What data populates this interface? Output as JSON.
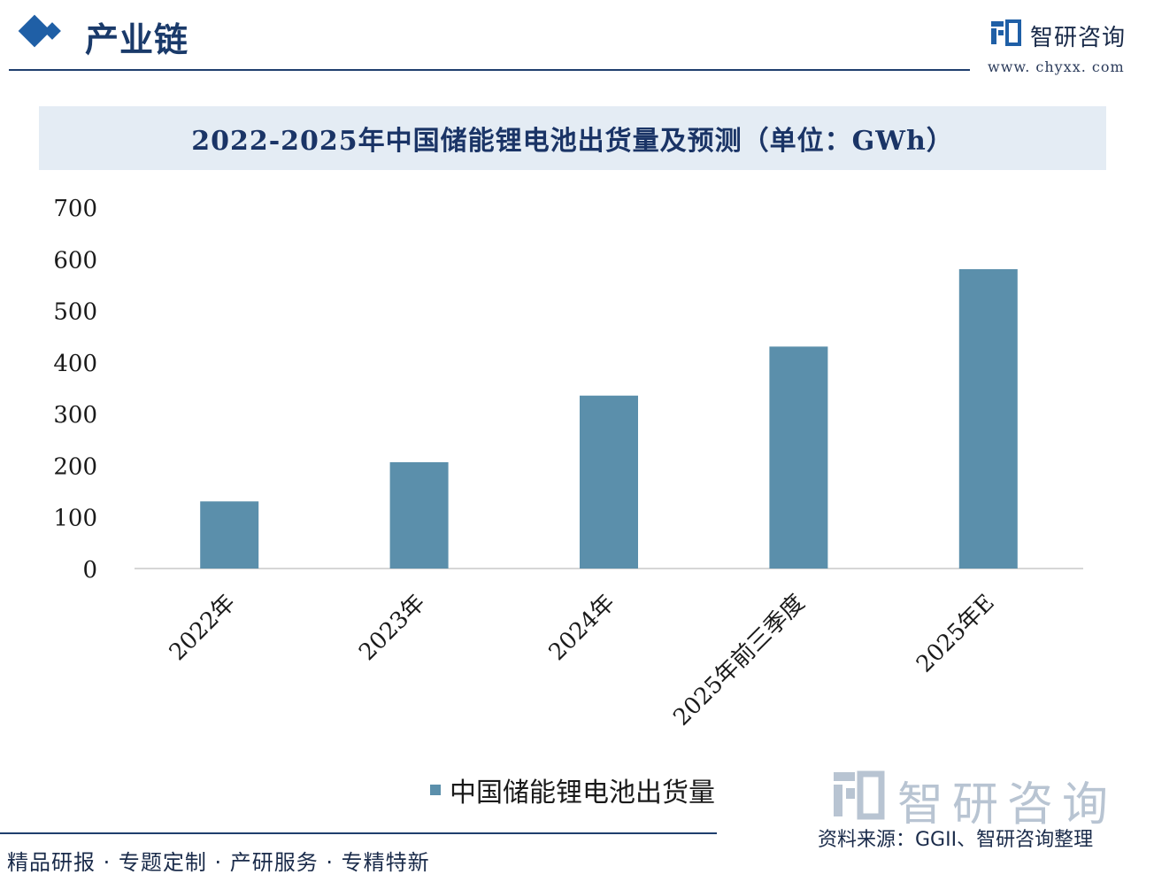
{
  "header": {
    "section_title": "产业链",
    "brand_name": "智研咨询",
    "brand_url": "www. chyxx. com"
  },
  "chart_data": {
    "type": "bar",
    "title": "2022-2025年中国储能锂电池出货量及预测（单位：GWh）",
    "categories": [
      "2022年",
      "2023年",
      "2024年",
      "2025年前三季度",
      "2025年E"
    ],
    "series": [
      {
        "name": "中国储能锂电池出货量",
        "values": [
          130,
          206,
          335,
          430,
          580
        ]
      }
    ],
    "yticks": [
      0,
      100,
      200,
      300,
      400,
      500,
      600,
      700
    ],
    "ylim": [
      0,
      700
    ],
    "xlabel": "",
    "ylabel": "",
    "grid": false,
    "legend_position": "bottom",
    "bar_color": "#5b8fab"
  },
  "legend": {
    "label": "中国储能锂电池出货量"
  },
  "footer": {
    "slogan": "精品研报 · 专题定制 · 产研服务 · 专精特新",
    "brand": "智研咨询",
    "source": "资料来源：GGII、智研咨询整理"
  },
  "colors": {
    "accent": "#1f5fa6",
    "title_bg": "#e4ecf4",
    "bar": "#5b8fab"
  }
}
